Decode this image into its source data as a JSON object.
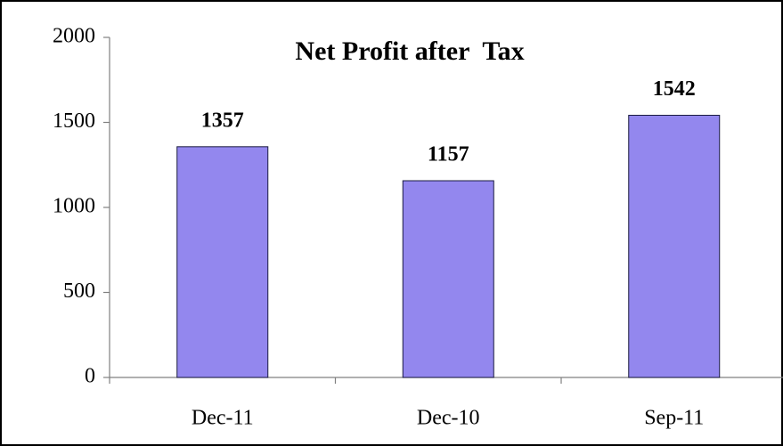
{
  "chart_data": {
    "type": "bar",
    "title": "Net Profit after  Tax",
    "categories": [
      "Dec-11",
      "Dec-10",
      "Sep-11"
    ],
    "values": [
      1357,
      1157,
      1542
    ],
    "color": "#9387ee",
    "ylim": [
      0,
      2000
    ],
    "yticks": [
      0,
      500,
      1000,
      1500,
      2000
    ],
    "grid": false
  }
}
